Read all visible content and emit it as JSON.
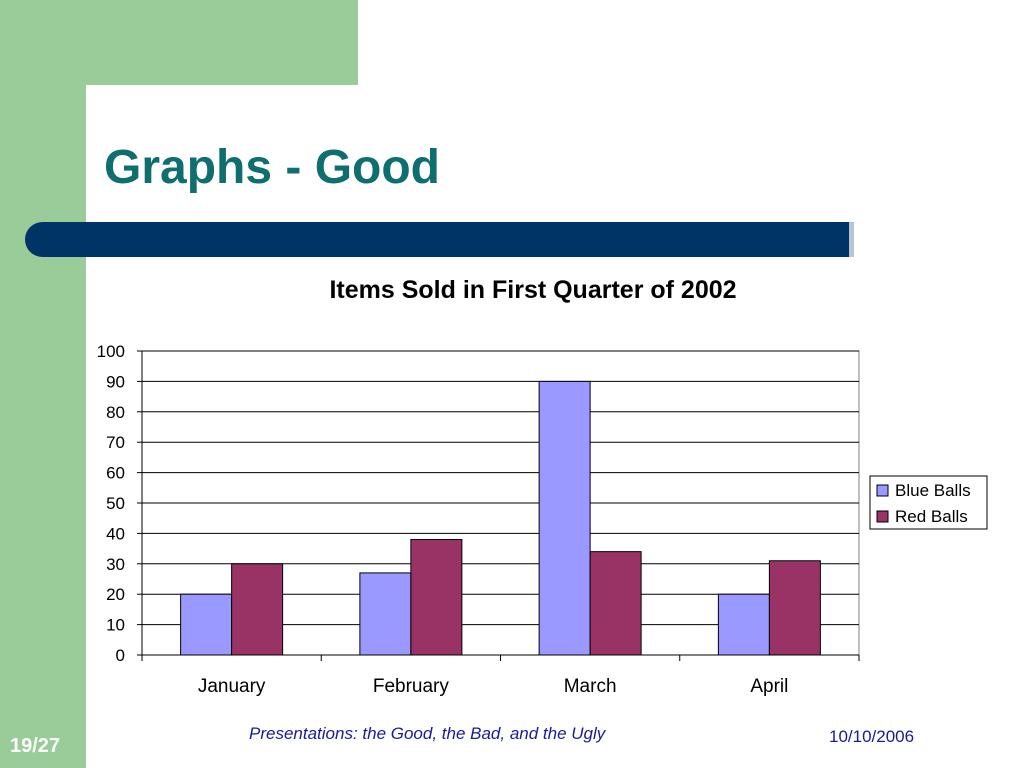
{
  "slide": {
    "title": "Graphs - Good",
    "footer_text": "Presentations: the Good, the Bad, and the Ugly",
    "date": "10/10/2006",
    "page": "19/27"
  },
  "chart_data": {
    "type": "bar",
    "title": "Items Sold in First Quarter of 2002",
    "xlabel": "",
    "ylabel": "",
    "categories": [
      "January",
      "February",
      "March",
      "April"
    ],
    "series": [
      {
        "name": "Blue Balls",
        "color": "#9999ff",
        "values": [
          20,
          27,
          90,
          20
        ]
      },
      {
        "name": "Red Balls",
        "color": "#993366",
        "values": [
          30,
          38,
          34,
          31
        ]
      }
    ],
    "ylim": [
      0,
      100
    ],
    "yticks": [
      0,
      10,
      20,
      30,
      40,
      50,
      60,
      70,
      80,
      90,
      100
    ],
    "grid": true,
    "legend_position": "right"
  }
}
